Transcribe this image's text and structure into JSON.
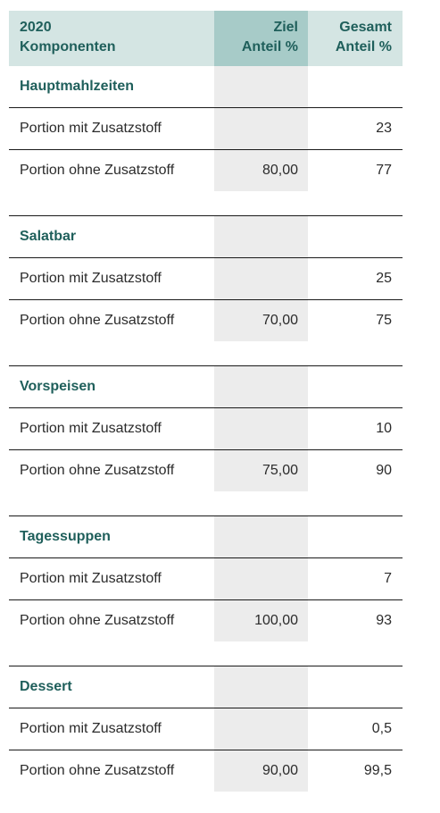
{
  "header": {
    "col1_line1": "2020",
    "col1_line2": "Komponenten",
    "col2_line1": "Ziel",
    "col2_line2": "Anteil %",
    "col3_line1": "Gesamt",
    "col3_line2": "Anteil %"
  },
  "groups": [
    {
      "title": "Hauptmahlzeiten",
      "rows": [
        {
          "label": "Portion mit Zusatzstoff",
          "ziel": "",
          "gesamt": "23"
        },
        {
          "label": "Portion ohne Zusatzstoff",
          "ziel": "80,00",
          "gesamt": "77"
        }
      ]
    },
    {
      "title": "Salatbar",
      "rows": [
        {
          "label": "Portion mit Zusatzstoff",
          "ziel": "",
          "gesamt": "25"
        },
        {
          "label": "Portion ohne Zusatzstoff",
          "ziel": "70,00",
          "gesamt": "75"
        }
      ]
    },
    {
      "title": "Vorspeisen",
      "rows": [
        {
          "label": "Portion mit Zusatzstoff",
          "ziel": "",
          "gesamt": "10"
        },
        {
          "label": "Portion ohne Zusatzstoff",
          "ziel": "75,00",
          "gesamt": "90"
        }
      ]
    },
    {
      "title": "Tagessuppen",
      "rows": [
        {
          "label": "Portion mit Zusatzstoff",
          "ziel": "",
          "gesamt": "7"
        },
        {
          "label": "Portion ohne Zusatzstoff",
          "ziel": "100,00",
          "gesamt": "93"
        }
      ]
    },
    {
      "title": "Dessert",
      "rows": [
        {
          "label": "Portion mit Zusatzstoff",
          "ziel": "",
          "gesamt": "0,5"
        },
        {
          "label": "Portion ohne Zusatzstoff",
          "ziel": "90,00",
          "gesamt": "99,5"
        }
      ]
    }
  ]
}
